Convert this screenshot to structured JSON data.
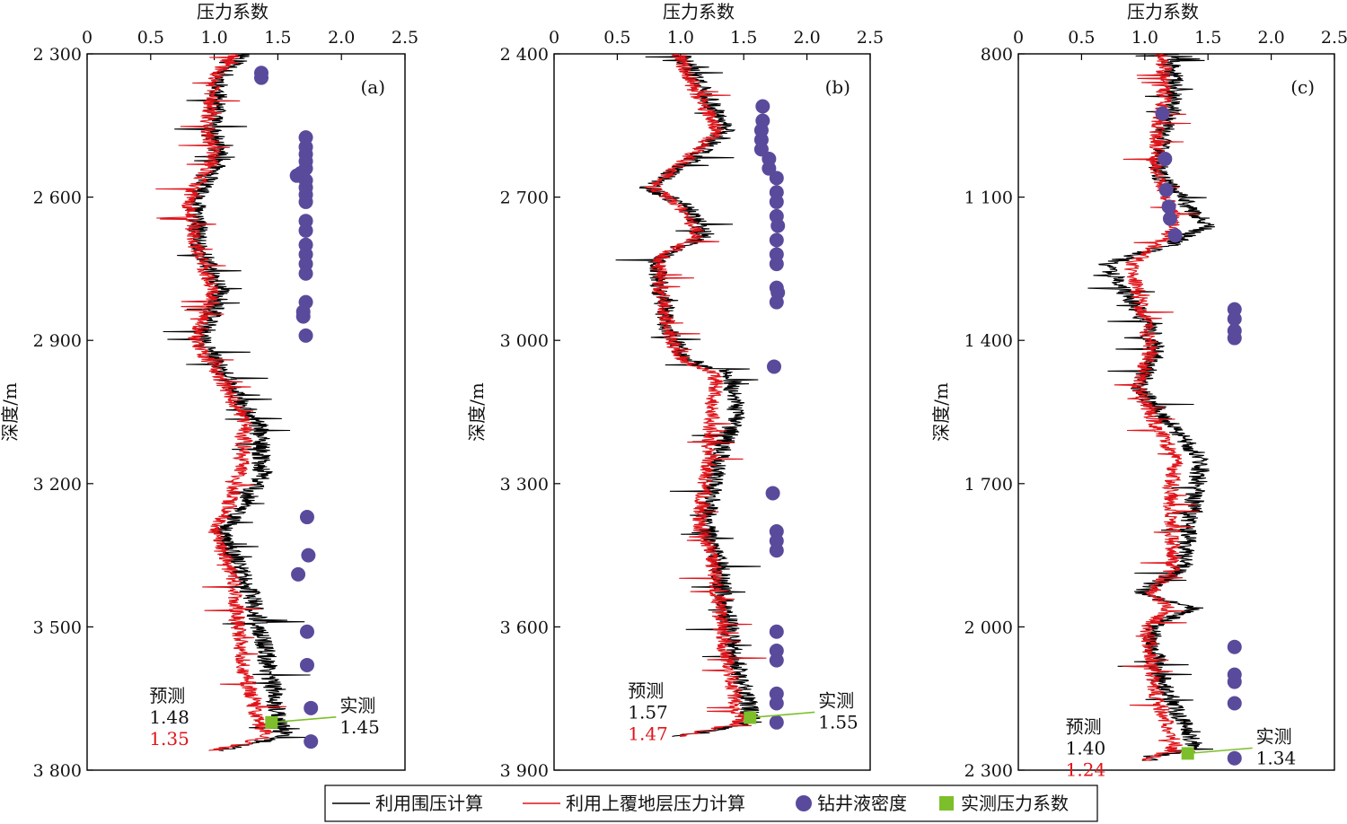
{
  "chart_data": [
    {
      "panel": "(a)",
      "type": "line",
      "xlabel": "压力系数",
      "ylabel": "深度/m",
      "xlim": [
        0,
        2.5
      ],
      "xticks": [
        "0",
        "0.5",
        "1.0",
        "1.5",
        "2.0",
        "2.5"
      ],
      "ylim": [
        2300,
        3800
      ],
      "yticks": [
        2300,
        2600,
        2900,
        3200,
        3500,
        3800
      ],
      "ytick_labels": [
        "2 300",
        "2 600",
        "2 900",
        "3 200",
        "3 500",
        "3 800"
      ],
      "series_black_profile": [
        [
          2300,
          1.25
        ],
        [
          2350,
          1.05
        ],
        [
          2450,
          0.98
        ],
        [
          2520,
          1.05
        ],
        [
          2600,
          0.85
        ],
        [
          2700,
          0.88
        ],
        [
          2800,
          1.05
        ],
        [
          2900,
          0.9
        ],
        [
          2980,
          1.1
        ],
        [
          3080,
          1.35
        ],
        [
          3180,
          1.38
        ],
        [
          3260,
          1.2
        ],
        [
          3300,
          1.05
        ],
        [
          3400,
          1.25
        ],
        [
          3550,
          1.4
        ],
        [
          3650,
          1.48
        ],
        [
          3700,
          1.5
        ],
        [
          3730,
          1.55
        ],
        [
          3760,
          1.0
        ]
      ],
      "series_red_profile": [
        [
          2300,
          1.15
        ],
        [
          2350,
          1.0
        ],
        [
          2450,
          0.95
        ],
        [
          2520,
          1.0
        ],
        [
          2600,
          0.8
        ],
        [
          2700,
          0.85
        ],
        [
          2800,
          1.0
        ],
        [
          2900,
          0.85
        ],
        [
          2980,
          1.05
        ],
        [
          3080,
          1.25
        ],
        [
          3180,
          1.2
        ],
        [
          3260,
          1.1
        ],
        [
          3300,
          1.0
        ],
        [
          3400,
          1.15
        ],
        [
          3550,
          1.2
        ],
        [
          3650,
          1.3
        ],
        [
          3700,
          1.35
        ],
        [
          3730,
          1.42
        ],
        [
          3760,
          1.0
        ]
      ],
      "mud_density": [
        [
          2340,
          1.37
        ],
        [
          2350,
          1.37
        ],
        [
          2475,
          1.72
        ],
        [
          2495,
          1.72
        ],
        [
          2510,
          1.72
        ],
        [
          2525,
          1.72
        ],
        [
          2540,
          1.72
        ],
        [
          2550,
          1.68
        ],
        [
          2555,
          1.65
        ],
        [
          2565,
          1.72
        ],
        [
          2580,
          1.72
        ],
        [
          2595,
          1.72
        ],
        [
          2610,
          1.72
        ],
        [
          2650,
          1.72
        ],
        [
          2670,
          1.72
        ],
        [
          2700,
          1.72
        ],
        [
          2720,
          1.72
        ],
        [
          2740,
          1.72
        ],
        [
          2760,
          1.72
        ],
        [
          2820,
          1.72
        ],
        [
          2840,
          1.7
        ],
        [
          2850,
          1.7
        ],
        [
          2890,
          1.72
        ],
        [
          3270,
          1.73
        ],
        [
          3350,
          1.74
        ],
        [
          3390,
          1.66
        ],
        [
          3510,
          1.73
        ],
        [
          3580,
          1.73
        ],
        [
          3670,
          1.76
        ],
        [
          3740,
          1.76
        ]
      ],
      "measured": [
        [
          3700,
          1.45
        ]
      ],
      "pred_title": "预测",
      "pred_black": "1.48",
      "pred_red": "1.35",
      "meas_title": "实测",
      "meas_value": "1.45"
    },
    {
      "panel": "(b)",
      "type": "line",
      "xlabel": "压力系数",
      "ylabel": "深度/m",
      "xlim": [
        0,
        2.5
      ],
      "xticks": [
        "0",
        "0.5",
        "1.0",
        "1.5",
        "2.0",
        "2.5"
      ],
      "ylim": [
        2400,
        3900
      ],
      "yticks": [
        2400,
        2700,
        3000,
        3300,
        3600,
        3900
      ],
      "ytick_labels": [
        "2 400",
        "2 700",
        "3 000",
        "3 300",
        "3 600",
        "3 900"
      ],
      "series_black_profile": [
        [
          2400,
          1.0
        ],
        [
          2480,
          1.2
        ],
        [
          2560,
          1.35
        ],
        [
          2620,
          1.1
        ],
        [
          2680,
          0.75
        ],
        [
          2720,
          1.05
        ],
        [
          2780,
          1.2
        ],
        [
          2830,
          0.8
        ],
        [
          2900,
          0.85
        ],
        [
          2980,
          0.9
        ],
        [
          3040,
          1.05
        ],
        [
          3070,
          1.4
        ],
        [
          3150,
          1.45
        ],
        [
          3250,
          1.3
        ],
        [
          3380,
          1.2
        ],
        [
          3450,
          1.3
        ],
        [
          3550,
          1.35
        ],
        [
          3650,
          1.42
        ],
        [
          3730,
          1.5
        ],
        [
          3800,
          1.57
        ],
        [
          3830,
          1.0
        ]
      ],
      "series_red_profile": [
        [
          2400,
          0.98
        ],
        [
          2480,
          1.12
        ],
        [
          2560,
          1.3
        ],
        [
          2620,
          1.05
        ],
        [
          2680,
          0.78
        ],
        [
          2720,
          1.0
        ],
        [
          2780,
          1.15
        ],
        [
          2830,
          0.82
        ],
        [
          2900,
          0.85
        ],
        [
          2980,
          0.9
        ],
        [
          3040,
          1.0
        ],
        [
          3070,
          1.28
        ],
        [
          3150,
          1.25
        ],
        [
          3250,
          1.22
        ],
        [
          3380,
          1.15
        ],
        [
          3450,
          1.25
        ],
        [
          3550,
          1.3
        ],
        [
          3650,
          1.35
        ],
        [
          3730,
          1.42
        ],
        [
          3800,
          1.47
        ],
        [
          3830,
          1.0
        ]
      ],
      "mud_density": [
        [
          2510,
          1.65
        ],
        [
          2540,
          1.65
        ],
        [
          2560,
          1.64
        ],
        [
          2580,
          1.64
        ],
        [
          2600,
          1.64
        ],
        [
          2620,
          1.7
        ],
        [
          2640,
          1.7
        ],
        [
          2660,
          1.76
        ],
        [
          2690,
          1.76
        ],
        [
          2710,
          1.76
        ],
        [
          2740,
          1.76
        ],
        [
          2760,
          1.77
        ],
        [
          2790,
          1.76
        ],
        [
          2820,
          1.76
        ],
        [
          2840,
          1.76
        ],
        [
          2890,
          1.76
        ],
        [
          2900,
          1.77
        ],
        [
          2920,
          1.76
        ],
        [
          3055,
          1.74
        ],
        [
          3320,
          1.73
        ],
        [
          3400,
          1.76
        ],
        [
          3420,
          1.76
        ],
        [
          3440,
          1.76
        ],
        [
          3610,
          1.76
        ],
        [
          3650,
          1.76
        ],
        [
          3670,
          1.76
        ],
        [
          3740,
          1.76
        ],
        [
          3760,
          1.76
        ],
        [
          3800,
          1.76
        ]
      ],
      "measured": [
        [
          3790,
          1.55
        ]
      ],
      "pred_title": "预测",
      "pred_black": "1.57",
      "pred_red": "1.47",
      "meas_title": "实测",
      "meas_value": "1.55"
    },
    {
      "panel": "(c)",
      "type": "line",
      "xlabel": "压力系数",
      "ylabel": "深度/m",
      "xlim": [
        0,
        2.5
      ],
      "xticks": [
        "0",
        "0.5",
        "1.0",
        "1.5",
        "2.0",
        "2.5"
      ],
      "ylim": [
        800,
        2300
      ],
      "yticks": [
        800,
        1100,
        1400,
        1700,
        2000,
        2300
      ],
      "ytick_labels": [
        "800",
        "1 100",
        "1 400",
        "1 700",
        "2 000",
        "2 300"
      ],
      "series_black_profile": [
        [
          800,
          1.2
        ],
        [
          900,
          1.25
        ],
        [
          960,
          1.15
        ],
        [
          1050,
          1.1
        ],
        [
          1120,
          1.35
        ],
        [
          1160,
          1.5
        ],
        [
          1200,
          1.2
        ],
        [
          1240,
          0.7
        ],
        [
          1300,
          0.85
        ],
        [
          1360,
          1.0
        ],
        [
          1420,
          1.1
        ],
        [
          1500,
          0.95
        ],
        [
          1560,
          1.15
        ],
        [
          1650,
          1.45
        ],
        [
          1720,
          1.4
        ],
        [
          1800,
          1.35
        ],
        [
          1880,
          1.3
        ],
        [
          1930,
          0.95
        ],
        [
          1960,
          1.4
        ],
        [
          2000,
          1.05
        ],
        [
          2080,
          1.1
        ],
        [
          2150,
          1.2
        ],
        [
          2220,
          1.35
        ],
        [
          2250,
          1.4
        ],
        [
          2280,
          1.0
        ]
      ],
      "series_red_profile": [
        [
          800,
          1.15
        ],
        [
          900,
          1.15
        ],
        [
          960,
          1.1
        ],
        [
          1050,
          1.1
        ],
        [
          1120,
          1.2
        ],
        [
          1160,
          1.25
        ],
        [
          1200,
          1.1
        ],
        [
          1240,
          0.9
        ],
        [
          1300,
          0.95
        ],
        [
          1360,
          1.0
        ],
        [
          1420,
          1.05
        ],
        [
          1500,
          0.95
        ],
        [
          1560,
          1.05
        ],
        [
          1650,
          1.25
        ],
        [
          1720,
          1.2
        ],
        [
          1800,
          1.22
        ],
        [
          1880,
          1.22
        ],
        [
          1930,
          1.05
        ],
        [
          1960,
          1.2
        ],
        [
          2000,
          1.02
        ],
        [
          2080,
          1.05
        ],
        [
          2150,
          1.1
        ],
        [
          2220,
          1.2
        ],
        [
          2250,
          1.24
        ],
        [
          2280,
          1.0
        ]
      ],
      "mud_density": [
        [
          925,
          1.14
        ],
        [
          1020,
          1.16
        ],
        [
          1085,
          1.17
        ],
        [
          1120,
          1.19
        ],
        [
          1145,
          1.2
        ],
        [
          1180,
          1.24
        ],
        [
          1335,
          1.71
        ],
        [
          1355,
          1.71
        ],
        [
          1380,
          1.71
        ],
        [
          1395,
          1.71
        ],
        [
          2042,
          1.71
        ],
        [
          2100,
          1.71
        ],
        [
          2115,
          1.71
        ],
        [
          2160,
          1.71
        ],
        [
          2275,
          1.71
        ]
      ],
      "measured": [
        [
          2265,
          1.34
        ]
      ],
      "pred_title": "预测",
      "pred_black": "1.40",
      "pred_red": "1.24",
      "meas_title": "实测",
      "meas_value": "1.34"
    }
  ],
  "legend": {
    "black_line": "利用围压计算",
    "red_line": "利用上覆地层压力计算",
    "mud": "钻井液密度",
    "measured": "实测压力系数"
  },
  "colors": {
    "black_line": "#000000",
    "red_line": "#e0141a",
    "mud": "#5a4a9c",
    "measured": "#7cbf2a",
    "annotation_red": "#e0141a"
  }
}
